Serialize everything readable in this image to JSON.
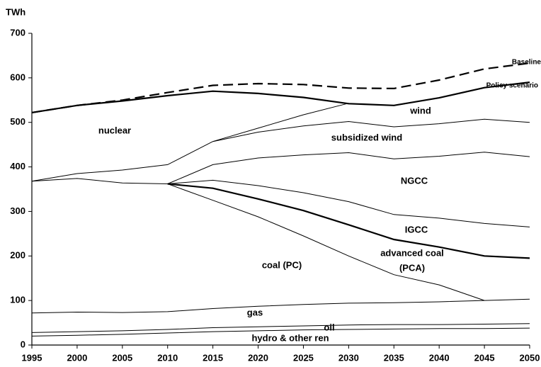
{
  "chart_data": {
    "type": "line",
    "y_label": "TWh",
    "x": [
      1995,
      2000,
      2005,
      2010,
      2015,
      2020,
      2025,
      2030,
      2035,
      2040,
      2045,
      2050
    ],
    "xlim": [
      1995,
      2050
    ],
    "xticks": [
      1995,
      2000,
      2005,
      2010,
      2015,
      2020,
      2025,
      2030,
      2035,
      2040,
      2045,
      2050
    ],
    "ylim": [
      0,
      700
    ],
    "yticks": [
      0,
      100,
      200,
      300,
      400,
      500,
      600,
      700
    ],
    "series": [
      {
        "name": "Baseline",
        "color": "#000000",
        "style": "dashed",
        "values": [
          522,
          538,
          550,
          567,
          583,
          587,
          585,
          577,
          576,
          595,
          620,
          633
        ]
      },
      {
        "name": "Policy scenario",
        "color": "#000000",
        "style": "thick",
        "values": [
          522,
          538,
          548,
          560,
          570,
          565,
          556,
          542,
          538,
          555,
          578,
          590
        ]
      },
      {
        "color": "#000000",
        "style": "thin",
        "values": [
          null,
          null,
          null,
          null,
          457,
          487,
          517,
          543,
          null,
          null,
          null,
          null
        ]
      },
      {
        "color": "#000000",
        "style": "thin",
        "values": [
          null,
          null,
          null,
          null,
          457,
          478,
          492,
          502,
          490,
          497,
          507,
          500
        ]
      },
      {
        "color": "#000000",
        "style": "thin",
        "values": [
          368,
          385,
          393,
          405,
          457,
          null,
          null,
          null,
          null,
          null,
          null,
          null
        ]
      },
      {
        "color": "#000000",
        "style": "thin",
        "values": [
          null,
          null,
          null,
          362,
          405,
          420,
          427,
          432,
          418,
          424,
          433,
          423
        ]
      },
      {
        "color": "#000000",
        "style": "thin",
        "values": [
          368,
          374,
          364,
          362,
          null,
          null,
          null,
          null,
          null,
          null,
          null,
          null
        ]
      },
      {
        "color": "#000000",
        "style": "thin",
        "values": [
          null,
          null,
          null,
          362,
          370,
          358,
          342,
          322,
          293,
          285,
          273,
          265
        ]
      },
      {
        "color": "#000000",
        "style": "thick",
        "values": [
          null,
          null,
          null,
          362,
          352,
          328,
          302,
          270,
          237,
          220,
          200,
          195
        ]
      },
      {
        "color": "#000000",
        "style": "thin",
        "values": [
          null,
          null,
          null,
          362,
          325,
          288,
          245,
          200,
          158,
          135,
          100,
          null
        ]
      },
      {
        "color": "#000000",
        "style": "thin",
        "values": [
          72,
          74,
          73,
          75,
          82,
          87,
          91,
          94,
          95,
          97,
          100,
          103
        ]
      },
      {
        "color": "#000000",
        "style": "thin",
        "values": [
          28,
          30,
          32,
          35,
          39,
          41,
          43,
          45,
          46,
          46,
          47,
          48
        ]
      },
      {
        "color": "#000000",
        "style": "thin",
        "values": [
          20,
          22,
          24,
          27,
          30,
          32,
          34,
          35,
          36,
          37,
          37,
          38
        ]
      }
    ],
    "annotations": [
      "nuclear",
      "wind",
      "subsidized wind",
      "NGCC",
      "IGCC",
      "advanced coal",
      "(PCA)",
      "coal (PC)",
      "gas",
      "oil",
      "hydro & other ren"
    ]
  }
}
